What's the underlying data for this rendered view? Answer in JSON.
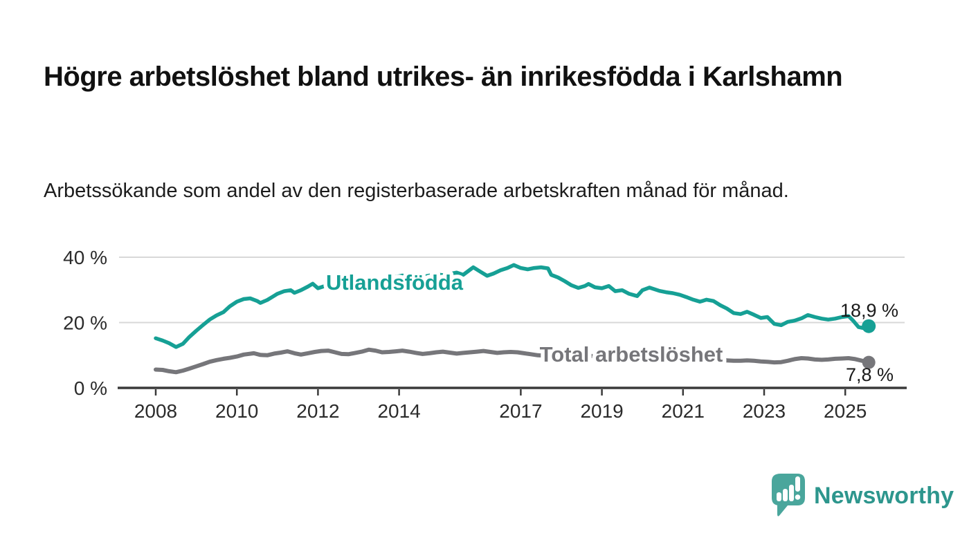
{
  "header": {
    "title": "Högre arbetslöshet bland utrikes- än inrikesfödda i Karlshamn",
    "subtitle": "Arbetssökande som andel av den registerbaserade arbetskraften månad för månad."
  },
  "colors": {
    "utlandsfodda": "#16a095",
    "total": "#76767a",
    "end_label_text": "#1a1a1a",
    "grid": "#d8d8d8",
    "axis": "#3a3a3a",
    "tick_text": "#2b2b2b",
    "logo_bubble": "#4aa69c",
    "logo_text": "#2d968d"
  },
  "chart_data": {
    "type": "line",
    "title": "",
    "xlabel": "",
    "ylabel": "",
    "grid": "horizontal",
    "legend_position": "inline-labels",
    "ylim": [
      0,
      42
    ],
    "xlim": [
      2007.06,
      2026.5
    ],
    "y_ticks": [
      {
        "value": 0,
        "label": "0 %"
      },
      {
        "value": 20,
        "label": "20 %"
      },
      {
        "value": 40,
        "label": "40 %"
      }
    ],
    "x_ticks": [
      {
        "value": 2008,
        "label": "2008"
      },
      {
        "value": 2010,
        "label": "2010"
      },
      {
        "value": 2012,
        "label": "2012"
      },
      {
        "value": 2014,
        "label": "2014"
      },
      {
        "value": 2017,
        "label": "2017"
      },
      {
        "value": 2019,
        "label": "2019"
      },
      {
        "value": 2021,
        "label": "2021"
      },
      {
        "value": 2023,
        "label": "2023"
      },
      {
        "value": 2025,
        "label": "2025"
      }
    ],
    "series": [
      {
        "name": "Utlandsfödda",
        "end_label": "18,9 %",
        "end_value": 18.9,
        "x": [
          2008.0,
          2008.17,
          2008.33,
          2008.5,
          2008.67,
          2008.83,
          2009.0,
          2009.17,
          2009.33,
          2009.5,
          2009.67,
          2009.83,
          2010.0,
          2010.17,
          2010.33,
          2010.5,
          2010.58,
          2010.75,
          2010.92,
          2011.0,
          2011.17,
          2011.33,
          2011.42,
          2011.58,
          2011.75,
          2011.87,
          2012.0,
          2012.17,
          2012.33,
          2012.42,
          2012.58,
          2012.75,
          2012.92,
          2013.08,
          2013.25,
          2013.42,
          2013.58,
          2013.75,
          2013.92,
          2014.08,
          2014.25,
          2014.42,
          2014.58,
          2014.75,
          2014.92,
          2015.08,
          2015.25,
          2015.42,
          2015.58,
          2015.75,
          2015.83,
          2016.0,
          2016.17,
          2016.33,
          2016.5,
          2016.67,
          2016.83,
          2017.0,
          2017.17,
          2017.33,
          2017.5,
          2017.67,
          2017.75,
          2017.92,
          2018.08,
          2018.25,
          2018.42,
          2018.58,
          2018.67,
          2018.83,
          2019.0,
          2019.17,
          2019.33,
          2019.5,
          2019.67,
          2019.87,
          2020.0,
          2020.17,
          2020.42,
          2020.58,
          2020.75,
          2020.92,
          2021.08,
          2021.25,
          2021.42,
          2021.58,
          2021.75,
          2021.92,
          2022.08,
          2022.25,
          2022.42,
          2022.58,
          2022.75,
          2022.92,
          2023.08,
          2023.25,
          2023.42,
          2023.58,
          2023.75,
          2023.92,
          2024.08,
          2024.25,
          2024.42,
          2024.58,
          2024.75,
          2024.92,
          2025.08,
          2025.2,
          2025.33,
          2025.45,
          2025.58
        ],
        "values": [
          15.2,
          14.5,
          13.7,
          12.5,
          13.5,
          15.6,
          17.5,
          19.3,
          20.9,
          22.2,
          23.2,
          25.0,
          26.4,
          27.2,
          27.4,
          26.6,
          26.0,
          26.9,
          28.2,
          28.8,
          29.6,
          29.9,
          29.1,
          29.9,
          31.0,
          31.9,
          30.5,
          31.2,
          31.5,
          30.9,
          32.0,
          32.9,
          33.2,
          32.6,
          33.0,
          33.5,
          33.1,
          33.6,
          34.0,
          34.4,
          34.1,
          34.5,
          34.0,
          34.4,
          34.8,
          34.5,
          34.9,
          35.3,
          34.6,
          36.2,
          36.9,
          35.6,
          34.3,
          35.0,
          36.0,
          36.7,
          37.6,
          36.7,
          36.3,
          36.7,
          36.9,
          36.6,
          34.6,
          33.8,
          32.7,
          31.4,
          30.6,
          31.2,
          31.8,
          30.8,
          30.5,
          31.2,
          29.6,
          29.9,
          28.8,
          28.1,
          29.9,
          30.7,
          29.7,
          29.3,
          29.0,
          28.5,
          27.8,
          27.0,
          26.4,
          27.0,
          26.6,
          25.3,
          24.3,
          22.9,
          22.6,
          23.3,
          22.4,
          21.4,
          21.7,
          19.6,
          19.2,
          20.2,
          20.6,
          21.3,
          22.3,
          21.7,
          21.2,
          20.9,
          21.2,
          21.7,
          22.0,
          20.5,
          18.6,
          18.3,
          18.9
        ]
      },
      {
        "name": "Total arbetslöshet",
        "end_label": "7,8 %",
        "end_value": 7.8,
        "x": [
          2008.0,
          2008.17,
          2008.33,
          2008.5,
          2008.67,
          2008.83,
          2009.0,
          2009.17,
          2009.33,
          2009.5,
          2009.67,
          2009.83,
          2010.0,
          2010.17,
          2010.42,
          2010.58,
          2010.75,
          2010.92,
          2011.08,
          2011.25,
          2011.42,
          2011.58,
          2011.75,
          2011.92,
          2012.08,
          2012.25,
          2012.42,
          2012.58,
          2012.75,
          2012.92,
          2013.08,
          2013.25,
          2013.42,
          2013.58,
          2013.75,
          2013.92,
          2014.08,
          2014.25,
          2014.42,
          2014.58,
          2014.75,
          2014.92,
          2015.08,
          2015.25,
          2015.42,
          2015.58,
          2015.75,
          2015.92,
          2016.08,
          2016.25,
          2016.42,
          2016.58,
          2016.75,
          2016.92,
          2017.08,
          2017.25,
          2017.42,
          2017.58,
          2017.75,
          2017.92,
          2018.17,
          2018.42,
          2018.67,
          2018.92,
          2019.17,
          2019.42,
          2019.67,
          2019.92,
          2020.17,
          2020.42,
          2020.67,
          2020.92,
          2021.17,
          2021.42,
          2021.67,
          2021.92,
          2022.08,
          2022.25,
          2022.42,
          2022.58,
          2022.75,
          2022.92,
          2023.08,
          2023.25,
          2023.42,
          2023.58,
          2023.75,
          2023.92,
          2024.08,
          2024.25,
          2024.42,
          2024.58,
          2024.75,
          2024.92,
          2025.08,
          2025.25,
          2025.42,
          2025.58
        ],
        "values": [
          5.6,
          5.5,
          5.1,
          4.8,
          5.3,
          5.9,
          6.6,
          7.3,
          8.0,
          8.5,
          8.9,
          9.2,
          9.6,
          10.2,
          10.6,
          10.1,
          10.0,
          10.5,
          10.8,
          11.2,
          10.6,
          10.2,
          10.6,
          11.0,
          11.3,
          11.4,
          10.9,
          10.4,
          10.3,
          10.7,
          11.1,
          11.7,
          11.4,
          10.9,
          11.0,
          11.2,
          11.4,
          11.1,
          10.7,
          10.4,
          10.6,
          10.9,
          11.1,
          10.8,
          10.5,
          10.7,
          10.9,
          11.1,
          11.3,
          11.0,
          10.7,
          10.9,
          11.0,
          10.9,
          10.6,
          10.3,
          10.0,
          9.9,
          10.1,
          10.2,
          9.9,
          9.6,
          9.7,
          9.9,
          9.7,
          9.5,
          9.5,
          9.7,
          10.1,
          10.0,
          9.8,
          9.6,
          9.3,
          9.1,
          8.9,
          8.7,
          8.4,
          8.3,
          8.3,
          8.4,
          8.3,
          8.1,
          8.0,
          7.8,
          7.9,
          8.3,
          8.8,
          9.1,
          9.0,
          8.7,
          8.6,
          8.7,
          8.9,
          9.0,
          9.1,
          8.8,
          8.3,
          7.8
        ]
      }
    ]
  },
  "footer": {
    "brand": "Newsworthy"
  }
}
